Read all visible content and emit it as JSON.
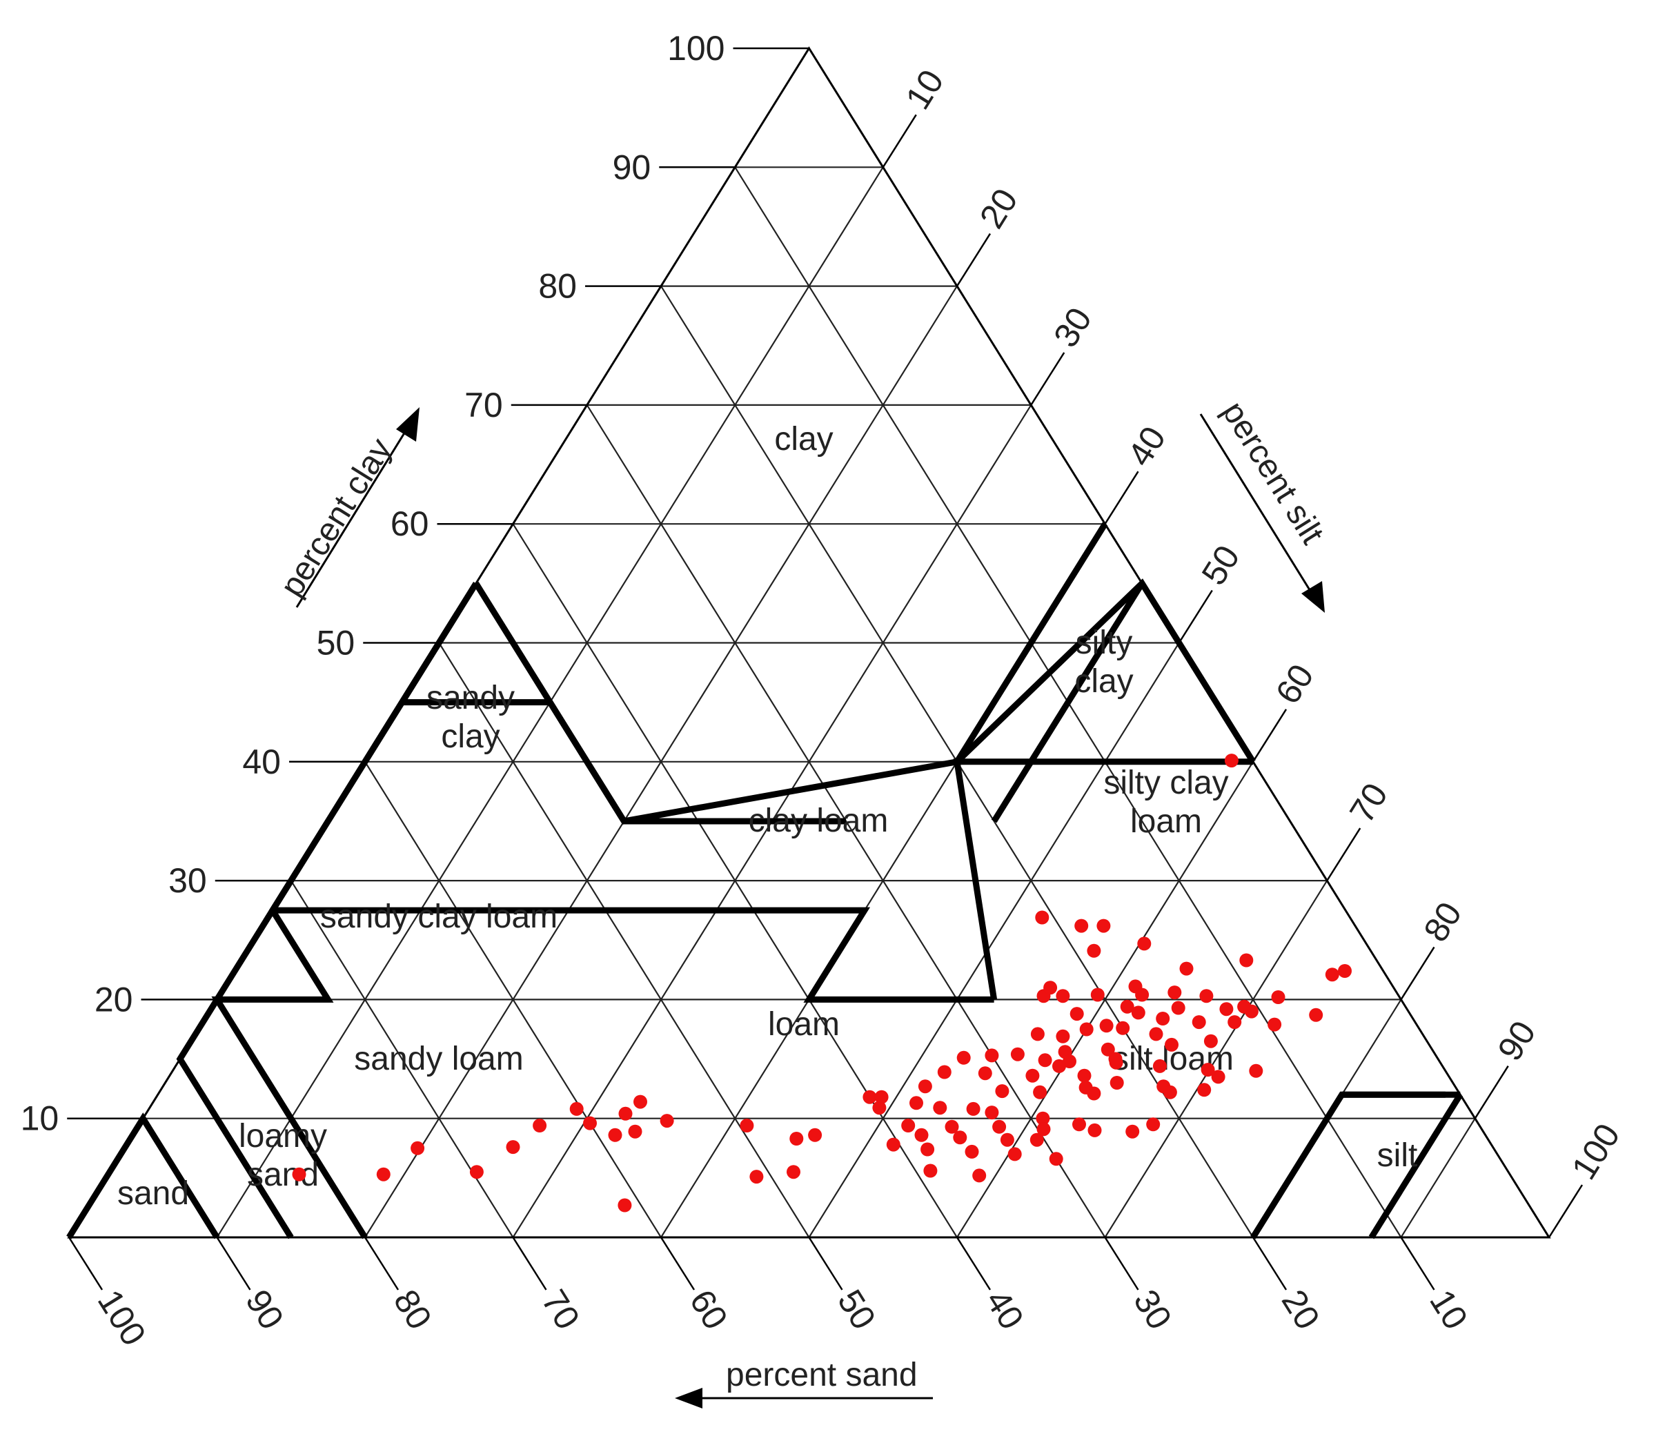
{
  "chart_data": {
    "type": "scatter",
    "subtype": "ternary soil texture triangle",
    "axes": {
      "clay": {
        "label": "percent clay",
        "ticks": [
          "10",
          "20",
          "30",
          "40",
          "50",
          "60",
          "70",
          "80",
          "90",
          "100"
        ]
      },
      "silt": {
        "label": "percent silt",
        "ticks": [
          "10",
          "20",
          "30",
          "40",
          "50",
          "60",
          "70",
          "80",
          "90",
          "100"
        ]
      },
      "sand": {
        "label": "percent sand",
        "ticks": [
          "100",
          "90",
          "80",
          "70",
          "60",
          "50",
          "40",
          "30",
          "20",
          "10"
        ]
      }
    },
    "grid": true,
    "regions": [
      {
        "name": "clay",
        "lines": [
          "clay"
        ]
      },
      {
        "name": "silty-clay",
        "lines": [
          "silty",
          "clay"
        ]
      },
      {
        "name": "sandy-clay",
        "lines": [
          "sandy",
          "clay"
        ]
      },
      {
        "name": "silty-clay-loam",
        "lines": [
          "silty clay",
          "loam"
        ]
      },
      {
        "name": "clay-loam",
        "lines": [
          "clay loam"
        ]
      },
      {
        "name": "sandy-clay-loam",
        "lines": [
          "sandy clay loam"
        ]
      },
      {
        "name": "loam",
        "lines": [
          "loam"
        ]
      },
      {
        "name": "sandy-loam",
        "lines": [
          "sandy loam"
        ]
      },
      {
        "name": "silt-loam",
        "lines": [
          "silt loam"
        ]
      },
      {
        "name": "loamy-sand",
        "lines": [
          "loamy",
          "sand"
        ]
      },
      {
        "name": "sand",
        "lines": [
          "sand"
        ]
      },
      {
        "name": "silt",
        "lines": [
          "silt"
        ]
      }
    ],
    "boundaries": [
      [
        [
          0,
          0
        ],
        [
          10,
          0
        ],
        [
          0,
          10
        ]
      ],
      [
        [
          0,
          15
        ],
        [
          15,
          0
        ],
        [
          30,
          0
        ]
      ],
      [
        [
          0,
          20
        ],
        [
          20,
          0
        ],
        [
          20,
          7.5
        ],
        [
          27.5,
          0
        ],
        [
          52.5,
          0
        ]
      ],
      [
        [
          45,
          0
        ],
        [
          45,
          10
        ],
        [
          35,
          20
        ]
      ],
      [
        [
          35,
          20
        ],
        [
          35,
          35
        ]
      ],
      [
        [
          55,
          45
        ],
        [
          35,
          45
        ]
      ],
      [
        [
          55,
          0
        ],
        [
          35,
          20
        ],
        [
          40,
          40
        ],
        [
          60,
          40
        ]
      ],
      [
        [
          40,
          40
        ],
        [
          55,
          45
        ],
        [
          40,
          60
        ]
      ],
      [
        [
          40,
          0
        ],
        [
          55,
          0
        ]
      ],
      [
        [
          27.5,
          0
        ],
        [
          27.5,
          40
        ],
        [
          20,
          40
        ],
        [
          20,
          52.5
        ]
      ],
      [
        [
          20,
          52.5
        ],
        [
          40,
          40
        ],
        [
          40,
          60
        ]
      ],
      [
        [
          12,
          88
        ],
        [
          12,
          80
        ],
        [
          0,
          80
        ]
      ],
      [
        [
          12,
          80
        ],
        [
          12,
          87
        ]
      ],
      [
        [
          12,
          88
        ],
        [
          0,
          88
        ]
      ]
    ],
    "points_note": "each point = [clay %, silt %]",
    "points": [
      [
        40.1,
        58.5
      ],
      [
        26.9,
        52.3
      ],
      [
        26.2,
        55.3
      ],
      [
        26.2,
        56.8
      ],
      [
        24.7,
        60.3
      ],
      [
        22.6,
        64.2
      ],
      [
        22.1,
        74.3
      ],
      [
        21.1,
        61.5
      ],
      [
        20.3,
        66.7
      ],
      [
        20.2,
        71.6
      ],
      [
        20.6,
        64.4
      ],
      [
        20.4,
        62.3
      ],
      [
        20.4,
        59.3
      ],
      [
        20.3,
        57.0
      ],
      [
        20.3,
        55.7
      ],
      [
        19.4,
        61.8
      ],
      [
        19.3,
        65.3
      ],
      [
        19.2,
        68.6
      ],
      [
        19.0,
        70.4
      ],
      [
        18.9,
        62.8
      ],
      [
        18.8,
        58.7
      ],
      [
        18.4,
        64.7
      ],
      [
        18.1,
        67.3
      ],
      [
        18.1,
        69.7
      ],
      [
        17.9,
        72.5
      ],
      [
        17.8,
        61.2
      ],
      [
        17.6,
        62.4
      ],
      [
        17.5,
        60.0
      ],
      [
        17.1,
        64.9
      ],
      [
        17.1,
        56.9
      ],
      [
        16.5,
        68.9
      ],
      [
        16.2,
        66.4
      ],
      [
        15.8,
        62.3
      ],
      [
        15.6,
        59.5
      ],
      [
        15.4,
        56.4
      ],
      [
        15.3,
        54.7
      ],
      [
        15.1,
        52.9
      ],
      [
        14.9,
        58.5
      ],
      [
        14.8,
        60.2
      ],
      [
        14.7,
        63.4
      ],
      [
        14.4,
        66.5
      ],
      [
        14.1,
        69.9
      ],
      [
        13.9,
        52.2
      ],
      [
        13.8,
        55.0
      ],
      [
        13.6,
        58.3
      ],
      [
        13.6,
        61.8
      ],
      [
        13.0,
        64.3
      ],
      [
        12.7,
        67.6
      ],
      [
        12.4,
        70.5
      ],
      [
        12.3,
        56.9
      ],
      [
        12.2,
        59.5
      ],
      [
        12.1,
        63.2
      ],
      [
        11.8,
        48.2
      ],
      [
        11.8,
        49.0
      ],
      [
        11.3,
        51.6
      ],
      [
        10.9,
        53.4
      ],
      [
        10.8,
        55.7
      ],
      [
        10.5,
        57.1
      ],
      [
        10.0,
        60.8
      ],
      [
        9.5,
        63.5
      ],
      [
        9.5,
        68.5
      ],
      [
        9.4,
        52.0
      ],
      [
        9.3,
        55.0
      ],
      [
        9.3,
        58.2
      ],
      [
        9.1,
        61.3
      ],
      [
        9.0,
        64.8
      ],
      [
        8.9,
        67.4
      ],
      [
        8.6,
        53.3
      ],
      [
        8.4,
        56.0
      ],
      [
        8.2,
        59.3
      ],
      [
        7.8,
        51.8
      ],
      [
        7.4,
        54.3
      ],
      [
        7.2,
        57.4
      ],
      [
        7.0,
        60.4
      ],
      [
        6.6,
        63.4
      ],
      [
        5.6,
        55.4
      ],
      [
        5.2,
        58.9
      ],
      [
        9.8,
        35.5
      ],
      [
        9.4,
        41.1
      ],
      [
        8.6,
        46.1
      ],
      [
        8.3,
        45.0
      ],
      [
        5.1,
        43.9
      ],
      [
        11.4,
        32.9
      ],
      [
        10.8,
        28.9
      ],
      [
        10.4,
        32.4
      ],
      [
        9.6,
        30.4
      ],
      [
        8.6,
        32.6
      ],
      [
        5.3,
        12.9
      ],
      [
        5.3,
        18.6
      ],
      [
        7.5,
        19.8
      ],
      [
        5.5,
        24.8
      ],
      [
        7.6,
        26.2
      ],
      [
        9.4,
        27.1
      ],
      [
        8.9,
        33.8
      ],
      [
        5.5,
        46.2
      ],
      [
        2.7,
        36.2
      ],
      [
        12.2,
        68.3
      ],
      [
        15.0,
        63.2
      ],
      [
        16.9,
        58.7
      ],
      [
        21.0,
        55.8
      ],
      [
        23.3,
        67.9
      ],
      [
        22.4,
        75.0
      ],
      [
        24.1,
        57.2
      ],
      [
        13.5,
        70.9
      ],
      [
        14.0,
        73.2
      ],
      [
        18.7,
        74.9
      ],
      [
        19.4,
        69.7
      ],
      [
        8.2,
        61.3
      ],
      [
        10.9,
        49.3
      ],
      [
        12.7,
        51.5
      ],
      [
        14.4,
        59.7
      ],
      [
        12.6,
        62.4
      ]
    ]
  }
}
